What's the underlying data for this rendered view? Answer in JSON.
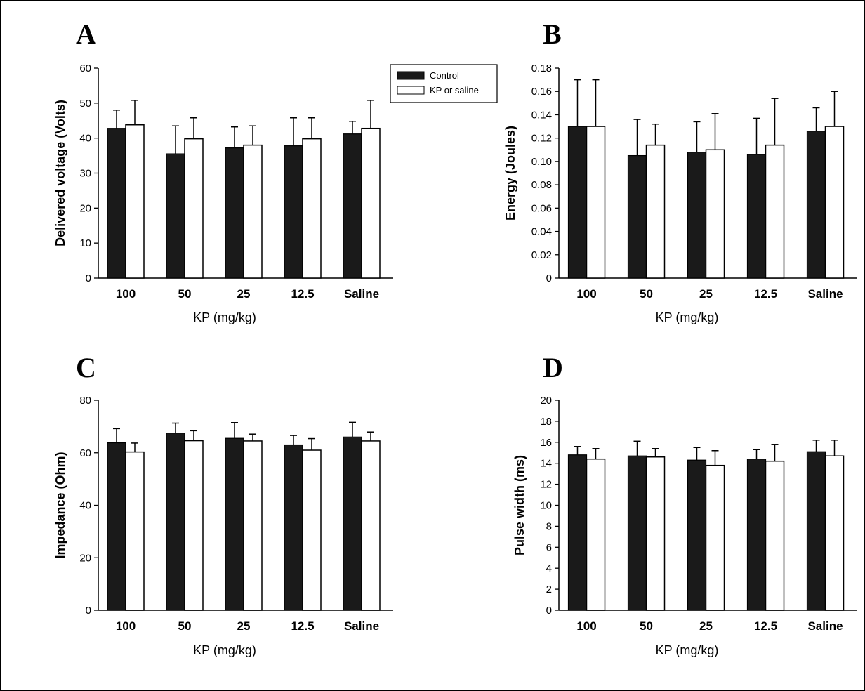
{
  "legend": {
    "control": "Control",
    "treatment": "KP or saline"
  },
  "colors": {
    "control": "#1a1a1a",
    "treatment": "#ffffff",
    "axis": "#000000"
  },
  "chart_data": [
    {
      "id": "A",
      "type": "bar",
      "panel_label": "A",
      "title": "",
      "xlabel": "KP (mg/kg)",
      "ylabel": "Delivered voltage (Volts)",
      "categories": [
        "100",
        "50",
        "25",
        "12.5",
        "Saline"
      ],
      "ylim": [
        0,
        60
      ],
      "yticks": [
        "0",
        "10",
        "20",
        "30",
        "40",
        "50",
        "60"
      ],
      "ytick_values": [
        0,
        10,
        20,
        30,
        40,
        50,
        60
      ],
      "series": [
        {
          "name": "Control",
          "values": [
            42.8,
            35.5,
            37.2,
            37.8,
            41.2
          ],
          "errors": [
            5.2,
            8.0,
            6.0,
            8.0,
            3.6
          ]
        },
        {
          "name": "KP or saline",
          "values": [
            43.8,
            39.8,
            38.0,
            39.8,
            42.8
          ],
          "errors": [
            7.0,
            6.0,
            5.5,
            6.0,
            8.0
          ]
        }
      ]
    },
    {
      "id": "B",
      "type": "bar",
      "panel_label": "B",
      "title": "",
      "xlabel": "KP (mg/kg)",
      "ylabel": "Energy (Joules)",
      "categories": [
        "100",
        "50",
        "25",
        "12.5",
        "Saline"
      ],
      "ylim": [
        0,
        0.18
      ],
      "yticks": [
        "0",
        "0.02",
        "0.04",
        "0.06",
        "0.08",
        "0.10",
        "0.12",
        "0.14",
        "0.16",
        "0.18"
      ],
      "ytick_values": [
        0,
        0.02,
        0.04,
        0.06,
        0.08,
        0.1,
        0.12,
        0.14,
        0.16,
        0.18
      ],
      "series": [
        {
          "name": "Control",
          "values": [
            0.13,
            0.105,
            0.108,
            0.106,
            0.126
          ],
          "errors": [
            0.04,
            0.031,
            0.026,
            0.031,
            0.02
          ]
        },
        {
          "name": "KP or saline",
          "values": [
            0.13,
            0.114,
            0.11,
            0.114,
            0.13
          ],
          "errors": [
            0.04,
            0.018,
            0.031,
            0.04,
            0.03
          ]
        }
      ]
    },
    {
      "id": "C",
      "type": "bar",
      "panel_label": "C",
      "title": "",
      "xlabel": "KP (mg/kg)",
      "ylabel": "Impedance (Ohm)",
      "categories": [
        "100",
        "50",
        "25",
        "12.5",
        "Saline"
      ],
      "ylim": [
        0,
        80
      ],
      "yticks": [
        "0",
        "20",
        "40",
        "60",
        "80"
      ],
      "ytick_values": [
        0,
        20,
        40,
        60,
        80
      ],
      "series": [
        {
          "name": "Control",
          "values": [
            63.8,
            67.5,
            65.5,
            63.0,
            66.0
          ],
          "errors": [
            5.4,
            3.8,
            6.0,
            3.6,
            5.6
          ]
        },
        {
          "name": "KP or saline",
          "values": [
            60.3,
            64.6,
            64.5,
            61.0,
            64.5
          ],
          "errors": [
            3.4,
            3.8,
            2.6,
            4.4,
            3.4
          ]
        }
      ]
    },
    {
      "id": "D",
      "type": "bar",
      "panel_label": "D",
      "title": "",
      "xlabel": "KP (mg/kg)",
      "ylabel": "Pulse width (ms)",
      "categories": [
        "100",
        "50",
        "25",
        "12.5",
        "Saline"
      ],
      "ylim": [
        0,
        20
      ],
      "yticks": [
        "0",
        "2",
        "4",
        "6",
        "8",
        "10",
        "12",
        "14",
        "16",
        "18",
        "20"
      ],
      "ytick_values": [
        0,
        2,
        4,
        6,
        8,
        10,
        12,
        14,
        16,
        18,
        20
      ],
      "series": [
        {
          "name": "Control",
          "values": [
            14.8,
            14.7,
            14.3,
            14.4,
            15.1
          ],
          "errors": [
            0.8,
            1.4,
            1.2,
            0.9,
            1.1
          ]
        },
        {
          "name": "KP or saline",
          "values": [
            14.4,
            14.6,
            13.8,
            14.2,
            14.7
          ],
          "errors": [
            1.0,
            0.8,
            1.4,
            1.6,
            1.5
          ]
        }
      ]
    }
  ]
}
